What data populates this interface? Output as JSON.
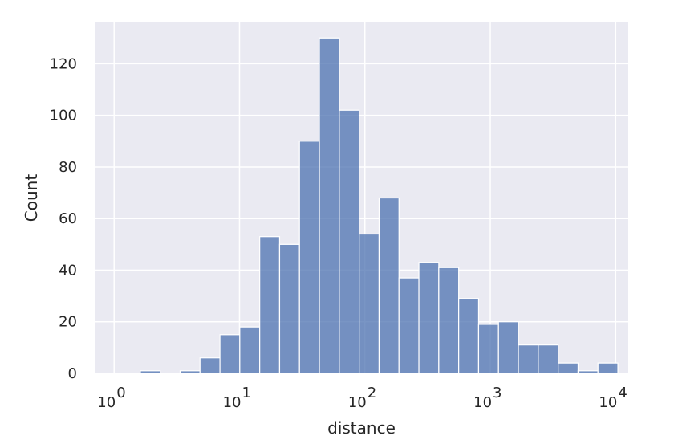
{
  "chart_data": {
    "type": "bar",
    "title": "",
    "xlabel": "distance",
    "ylabel": "Count",
    "xscale": "log",
    "xlim": [
      0.7,
      12600
    ],
    "ylim": [
      0,
      136
    ],
    "grid": true,
    "background_color": "#eaeaf2",
    "bar_color": "#4c72b0",
    "x_ticks": [
      {
        "value": 1,
        "base": "10",
        "exp": "0"
      },
      {
        "value": 10,
        "base": "10",
        "exp": "1"
      },
      {
        "value": 100,
        "base": "10",
        "exp": "2"
      },
      {
        "value": 1000,
        "base": "10",
        "exp": "3"
      },
      {
        "value": 10000,
        "base": "10",
        "exp": "4"
      }
    ],
    "y_ticks": [
      "0",
      "20",
      "40",
      "60",
      "80",
      "100",
      "120"
    ],
    "bin_edges": [
      1.12,
      1.62,
      2.33,
      3.36,
      4.84,
      6.98,
      10.05,
      14.49,
      20.88,
      30.09,
      43.36,
      62.49,
      90.05,
      129.8,
      187.0,
      269.5,
      388.4,
      559.7,
      806.6,
      1162.4,
      1675.1,
      2413.9,
      3478.7,
      5013.1,
      7224.4,
      10411
    ],
    "counts": [
      0,
      1,
      0,
      1,
      6,
      15,
      18,
      53,
      50,
      90,
      130,
      102,
      54,
      68,
      37,
      43,
      41,
      29,
      19,
      20,
      11,
      11,
      4,
      1,
      4
    ]
  }
}
